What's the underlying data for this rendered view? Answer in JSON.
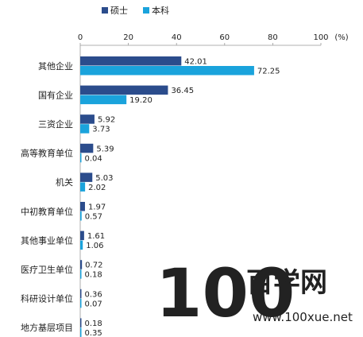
{
  "watermark": {
    "digits": "100",
    "brand": "百学网",
    "url": "www.100xue.net"
  },
  "chart_data": {
    "type": "bar",
    "orientation": "horizontal",
    "unit_label": "(%)",
    "xlim": [
      0,
      100
    ],
    "x_ticks": [
      0,
      20,
      40,
      60,
      80,
      100
    ],
    "legend_position": "top",
    "grid": false,
    "categories": [
      "其他企业",
      "国有企业",
      "三资企业",
      "高等教育单位",
      "机关",
      "中初教育单位",
      "其他事业单位",
      "医疗卫生单位",
      "科研设计单位",
      "地方基层项目"
    ],
    "series": [
      {
        "name": "硕士",
        "color": "#2b4c8c",
        "values": [
          42.01,
          36.45,
          5.92,
          5.39,
          5.03,
          1.97,
          1.61,
          0.72,
          0.36,
          0.18
        ],
        "labels": [
          "42.01",
          "36.45",
          "5.92",
          "5.39",
          "5.03",
          "1.97",
          "1.61",
          "0.72",
          "0.36",
          "0.18"
        ]
      },
      {
        "name": "本科",
        "color": "#1aa3dc",
        "values": [
          72.25,
          19.2,
          3.73,
          0.04,
          2.02,
          0.57,
          1.06,
          0.18,
          0.07,
          0.35
        ],
        "labels": [
          "72.25",
          "19.20",
          "3.73",
          "0.04",
          "2.02",
          "0.57",
          "1.06",
          "0.18",
          "0.07",
          "0.35"
        ]
      }
    ]
  }
}
